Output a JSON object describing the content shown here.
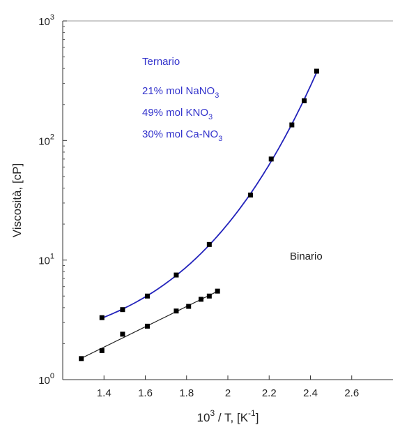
{
  "chart_data": {
    "type": "scatter",
    "title": "",
    "xlabel": {
      "base": "10",
      "sup": "3",
      "mid": " / T,  [K",
      "sup2": "-1",
      "end": "]"
    },
    "ylabel": "Viscosità, [cP]",
    "xlim": [
      1.2,
      2.8
    ],
    "ylim": [
      1,
      1000
    ],
    "yscale": "log",
    "grid": false,
    "x_ticks": [
      1.4,
      1.6,
      1.8,
      2.0,
      2.2,
      2.4,
      2.6
    ],
    "x_tick_labels": [
      "1.4",
      "1.6",
      "1.8",
      "2",
      "2.2",
      "2.4",
      "2.6"
    ],
    "y_ticks": [
      1,
      10,
      100,
      1000
    ],
    "y_tick_labels": [
      {
        "base": "10",
        "exp": "0"
      },
      {
        "base": "10",
        "exp": "1"
      },
      {
        "base": "10",
        "exp": "2"
      },
      {
        "base": "10",
        "exp": "3"
      }
    ],
    "series": [
      {
        "name": "Ternario",
        "color": "#2222bb",
        "marker_color": "#000000",
        "points": [
          [
            1.39,
            3.3
          ],
          [
            1.49,
            3.85
          ],
          [
            1.61,
            5.0
          ],
          [
            1.75,
            7.5
          ],
          [
            1.91,
            13.5
          ],
          [
            2.11,
            35
          ],
          [
            2.21,
            70
          ],
          [
            2.31,
            135
          ],
          [
            2.37,
            215
          ],
          [
            2.43,
            380
          ]
        ]
      },
      {
        "name": "Binario",
        "color": "#222222",
        "marker_color": "#000000",
        "points": [
          [
            1.29,
            1.5
          ],
          [
            1.39,
            1.75
          ],
          [
            1.49,
            2.4
          ],
          [
            1.61,
            2.8
          ],
          [
            1.75,
            3.75
          ],
          [
            1.81,
            4.1
          ],
          [
            1.87,
            4.7
          ],
          [
            1.91,
            5.0
          ],
          [
            1.95,
            5.5
          ]
        ]
      }
    ],
    "annotations": {
      "ternario_title": "Ternario",
      "composition": [
        {
          "pre": "21% mol NaNO",
          "sub": "3"
        },
        {
          "pre": "49% mol KNO",
          "sub": "3"
        },
        {
          "pre": "30% mol Ca-NO",
          "sub": "3"
        }
      ],
      "binario_label": "Binario",
      "annotation_color": "#3333cc",
      "binario_color": "#222222"
    }
  }
}
